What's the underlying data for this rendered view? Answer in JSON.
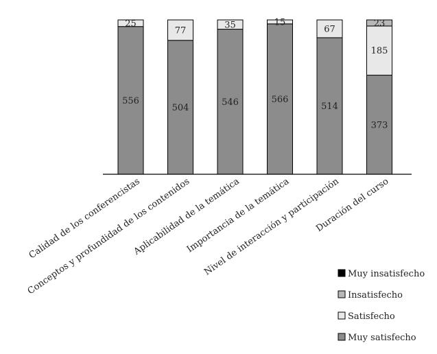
{
  "chart_data": {
    "type": "bar",
    "stacked": true,
    "categories": [
      "Calidad de los conferencistas",
      "Conceptos y profundidad de los contenidos",
      "Aplicabilidad de la temática",
      "Importancia de la temática",
      "Nivel de interacción y participación",
      "Duración del curso"
    ],
    "series": [
      {
        "name": "Muy satisfecho",
        "color": "#8c8c8c",
        "values": [
          556,
          504,
          546,
          566,
          514,
          373
        ]
      },
      {
        "name": "Satisfecho",
        "color": "#e8e8e8",
        "values": [
          25,
          77,
          35,
          15,
          67,
          185
        ]
      },
      {
        "name": "Insatisfecho",
        "color": "#b8b8b8",
        "values": [
          0,
          0,
          0,
          0,
          0,
          23
        ]
      },
      {
        "name": "Muy insatisfecho",
        "color": "#000000",
        "values": [
          0,
          0,
          0,
          0,
          0,
          0
        ]
      }
    ],
    "segment_labels": [
      [
        "556",
        "25",
        null,
        null
      ],
      [
        "504",
        "77",
        null,
        null
      ],
      [
        "546",
        "35",
        null,
        null
      ],
      [
        "566",
        "15",
        null,
        null
      ],
      [
        "514",
        "67",
        null,
        null
      ],
      [
        "373",
        "185",
        "23",
        null
      ]
    ],
    "legend_order": [
      "Muy insatisfecho",
      "Insatisfecho",
      "Satisfecho",
      "Muy satisfecho"
    ],
    "legend_position": "bottom-right",
    "ylim": [
      0,
      581
    ],
    "grid": false,
    "title": "",
    "xlabel": "",
    "ylabel": ""
  }
}
